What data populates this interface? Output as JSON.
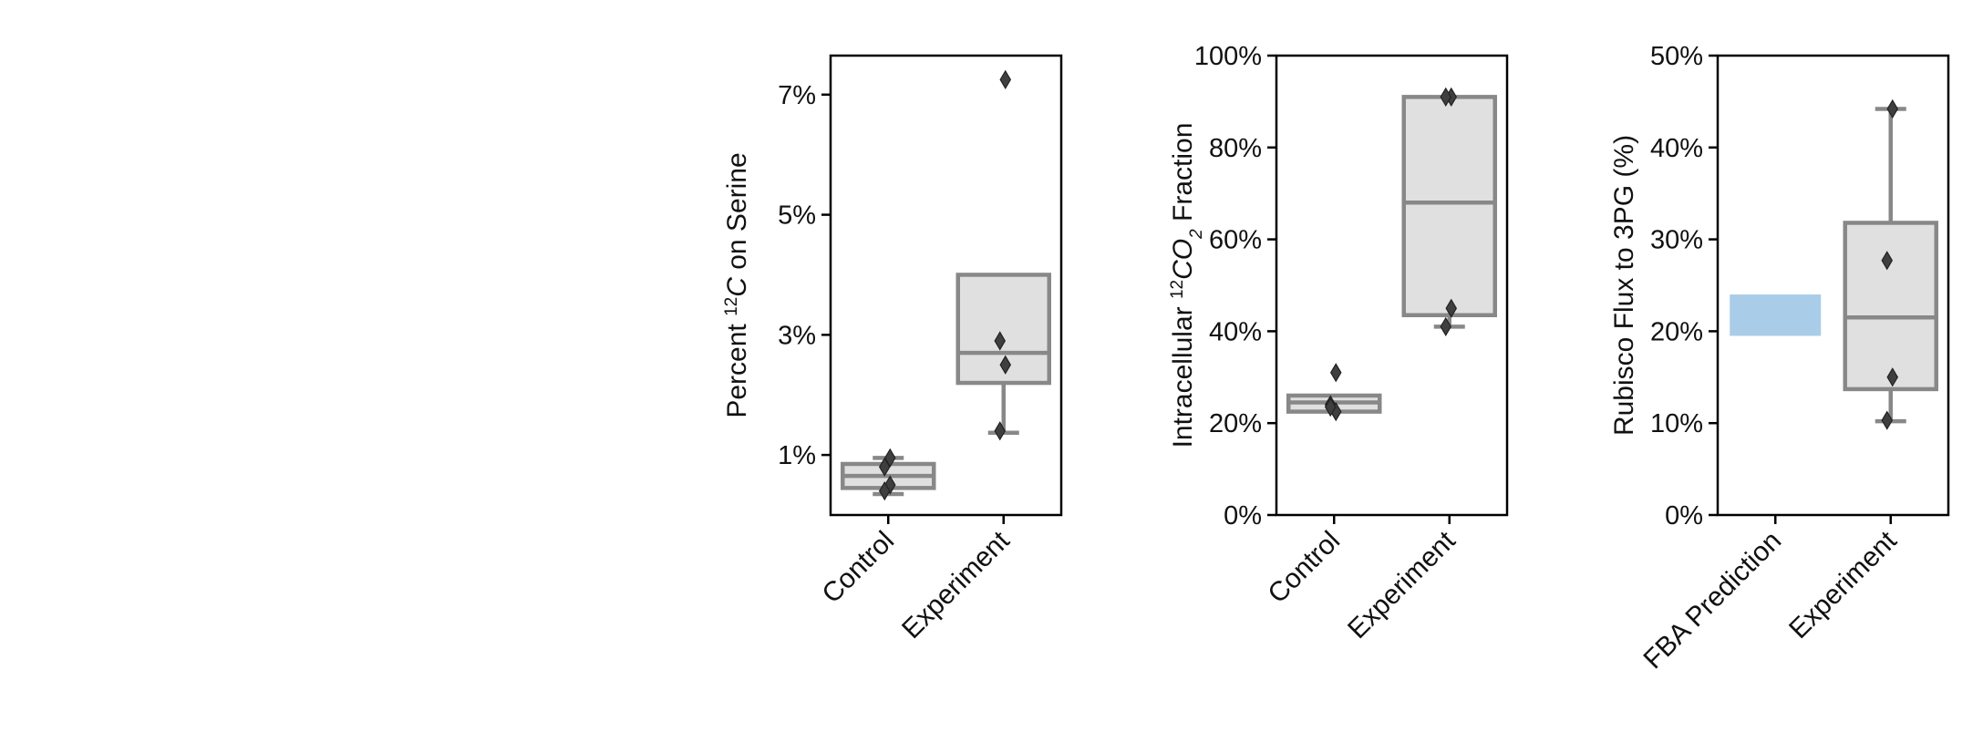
{
  "chart_data": [
    {
      "type": "box",
      "ylabel": "Percent ¹²C on Serine",
      "ylabel_parts": [
        {
          "text": "Percent "
        },
        {
          "text": "12",
          "sup": true
        },
        {
          "text": "C",
          "italic": true
        },
        {
          "text": " on Serine"
        }
      ],
      "yticks": [
        0.01,
        0.03,
        0.05,
        0.07
      ],
      "ytick_labels": [
        "1%",
        "3%",
        "5%",
        "7%"
      ],
      "ylim": [
        0.0,
        0.0765
      ],
      "categories": [
        "Control",
        "Experiment"
      ],
      "boxes": [
        {
          "category": "Control",
          "q1": 0.0045,
          "median": 0.0065,
          "q3": 0.0085,
          "whisker_low": 0.0035,
          "whisker_high": 0.0095,
          "fill": "#e0e0e0"
        },
        {
          "category": "Experiment",
          "q1": 0.022,
          "median": 0.027,
          "q3": 0.04,
          "whisker_low": 0.0137,
          "whisker_high": 0.04,
          "fill": "#e0e0e0"
        }
      ],
      "points": [
        {
          "category": "Control",
          "values": [
            0.0095,
            0.008,
            0.005,
            0.004
          ]
        },
        {
          "category": "Experiment",
          "values": [
            0.0725,
            0.029,
            0.025,
            0.014
          ]
        }
      ]
    },
    {
      "type": "box",
      "ylabel": "Intracellular ¹²CO₂ Fraction",
      "ylabel_parts": [
        {
          "text": "Intracellular "
        },
        {
          "text": "12",
          "sup": true
        },
        {
          "text": "CO",
          "italic": true
        },
        {
          "text": "2",
          "sub": true,
          "italic": true
        },
        {
          "text": " Fraction"
        }
      ],
      "yticks": [
        0.0,
        0.2,
        0.4,
        0.6,
        0.8,
        1.0
      ],
      "ytick_labels": [
        "0%",
        "20%",
        "40%",
        "60%",
        "80%",
        "100%"
      ],
      "ylim": [
        0.0,
        1.0
      ],
      "categories": [
        "Control",
        "Experiment"
      ],
      "boxes": [
        {
          "category": "Control",
          "q1": 0.225,
          "median": 0.245,
          "q3": 0.26,
          "whisker_low": 0.225,
          "whisker_high": 0.26,
          "fill": "#e0e0e0"
        },
        {
          "category": "Experiment",
          "q1": 0.435,
          "median": 0.68,
          "q3": 0.91,
          "whisker_low": 0.41,
          "whisker_high": 0.91,
          "fill": "#e0e0e0"
        }
      ],
      "points": [
        {
          "category": "Control",
          "values": [
            0.31,
            0.24,
            0.225,
            0.235
          ]
        },
        {
          "category": "Experiment",
          "values": [
            0.91,
            0.91,
            0.45,
            0.41
          ]
        }
      ]
    },
    {
      "type": "box",
      "ylabel": "Rubisco Flux to 3PG (%)",
      "ylabel_parts": [
        {
          "text": "Rubisco Flux to 3PG (%)"
        }
      ],
      "yticks": [
        0.0,
        0.1,
        0.2,
        0.3,
        0.4,
        0.5
      ],
      "ytick_labels": [
        "0%",
        "10%",
        "20%",
        "30%",
        "40%",
        "50%"
      ],
      "ylim": [
        0.0,
        0.5
      ],
      "categories": [
        "FBA Prediction",
        "Experiment"
      ],
      "bands": [
        {
          "category": "FBA Prediction",
          "low": 0.195,
          "high": 0.24,
          "color": "#a9cde8"
        }
      ],
      "boxes": [
        {
          "category": "Experiment",
          "q1": 0.137,
          "median": 0.215,
          "q3": 0.318,
          "whisker_low": 0.102,
          "whisker_high": 0.442,
          "fill": "#e0e0e0"
        }
      ],
      "points": [
        {
          "category": "Experiment",
          "values": [
            0.442,
            0.277,
            0.15,
            0.103
          ]
        }
      ]
    }
  ]
}
